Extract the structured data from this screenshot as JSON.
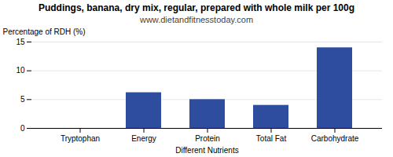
{
  "chart_data": {
    "type": "bar",
    "title": "Puddings, banana, dry mix, regular, prepared with whole milk per 100g",
    "subtitle": "www.dietandfitnesstoday.com",
    "categories": [
      "Tryptophan",
      "Energy",
      "Protein",
      "Total Fat",
      "Carbohydrate"
    ],
    "values": [
      0,
      6.2,
      5.0,
      4.0,
      14.0
    ],
    "color": "#2e4d9e",
    "xlabel": "Different Nutrients",
    "ylabel": "Percentage of RDH (%)",
    "ylim": [
      0,
      15
    ],
    "yticks": [
      0,
      5,
      10,
      15
    ],
    "grid": true
  }
}
